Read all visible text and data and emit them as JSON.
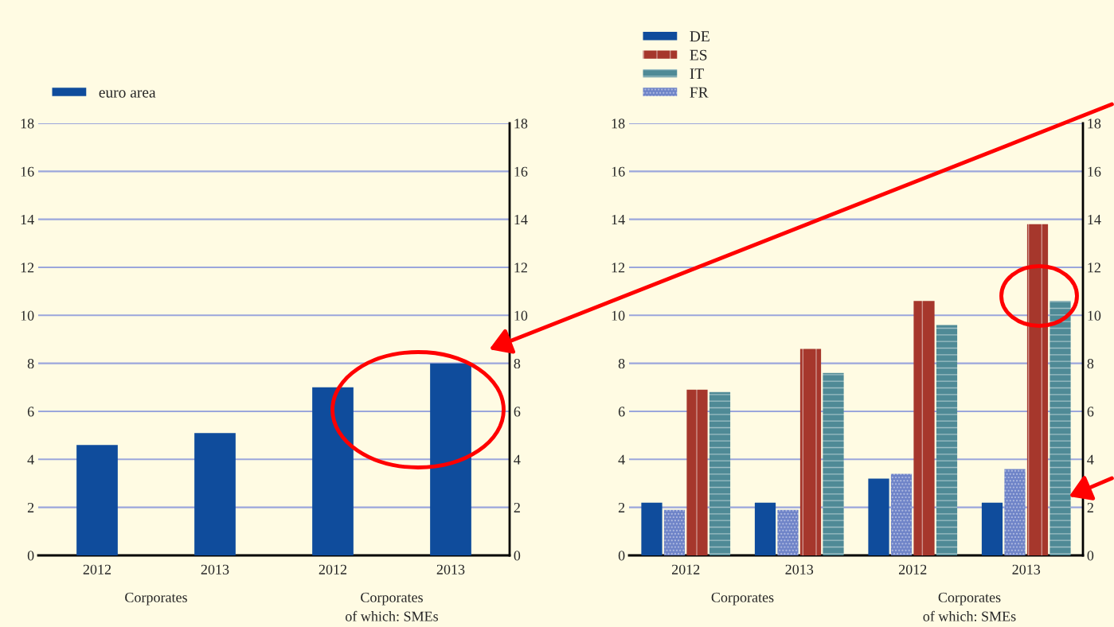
{
  "chart_data": [
    {
      "type": "bar",
      "categories": [
        "2012",
        "2013",
        "2012",
        "2013"
      ],
      "series": [
        {
          "name": "euro area",
          "color": "#0f4c9c",
          "values": [
            4.6,
            5.1,
            7.0,
            8.0
          ]
        }
      ],
      "ylim": [
        0,
        18
      ],
      "yticks": [
        0,
        2,
        4,
        6,
        8,
        10,
        12,
        14,
        16,
        18
      ],
      "y2lim": [
        0,
        18
      ],
      "y2ticks": [
        0,
        2,
        4,
        6,
        8,
        10,
        12,
        14,
        16,
        18
      ],
      "grid": true,
      "legend": "top left",
      "annotations": [
        "Corporates",
        "Corporates\nof which: SMEs"
      ]
    },
    {
      "type": "bar",
      "categories": [
        "2012",
        "2013",
        "2012",
        "2013"
      ],
      "series": [
        {
          "name": "DE",
          "color": "#0f4c9c",
          "values": [
            2.2,
            2.2,
            3.2,
            2.2
          ]
        },
        {
          "name": "FR",
          "color": "#6f84c8",
          "values": [
            1.9,
            1.9,
            3.4,
            3.6
          ]
        },
        {
          "name": "ES",
          "color": "#a6372c",
          "values": [
            6.9,
            8.6,
            10.6,
            13.8
          ]
        },
        {
          "name": "IT",
          "color": "#4f8a96",
          "values": [
            6.8,
            7.6,
            9.6,
            10.6
          ]
        }
      ],
      "ylim": [
        0,
        18
      ],
      "yticks": [
        0,
        2,
        4,
        6,
        8,
        10,
        12,
        14,
        16,
        18
      ],
      "y2lim": [
        0,
        18
      ],
      "y2ticks": [
        0,
        2,
        4,
        6,
        8,
        10,
        12,
        14,
        16,
        18
      ],
      "grid": true,
      "legend": "top left",
      "annotations": [
        "Corporates",
        "Corporates\nof which: SMEs"
      ]
    }
  ]
}
